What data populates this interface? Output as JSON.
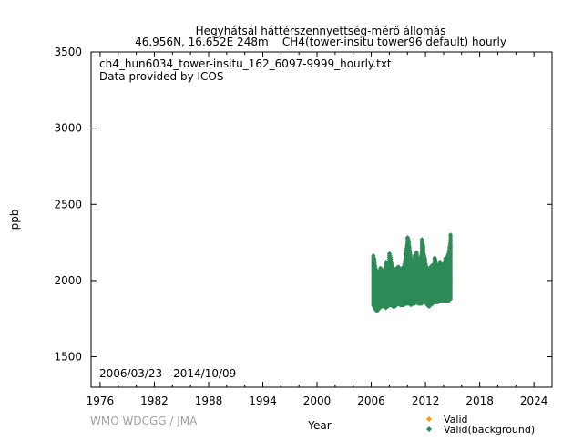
{
  "chart_data": {
    "type": "scatter",
    "title": "Hegyhátsál háttérszennyettség-mérő állomás",
    "subtitle": "46.956N, 16.652E 248m    CH4(tower-insitu tower96 default) hourly",
    "file_label": "ch4_hun6034_tower-insitu_162_6097-9999_hourly.txt",
    "provider_label": "Data provided by ICOS",
    "date_range_label": "2006/03/23 - 2014/10/09",
    "xlabel": "Year",
    "ylabel": "ppb",
    "xlim": [
      1975,
      2026
    ],
    "ylim": [
      1300,
      3500
    ],
    "xticks": [
      "1976",
      "1982",
      "1988",
      "1994",
      "2000",
      "2006",
      "2012",
      "2018",
      "2024"
    ],
    "yticks": [
      "1500",
      "2000",
      "2500",
      "3000",
      "3500"
    ],
    "grid": false,
    "legend_position": "bottom-right",
    "watermark": "WMO WDCGG / JMA",
    "series": [
      {
        "name": "Valid",
        "color": "#f5a000",
        "points": []
      },
      {
        "name": "Valid(background)",
        "color": "#2e8b57",
        "envelope_note_columns": [
          "year",
          "min_ppb",
          "max_ppb"
        ],
        "envelope": [
          [
            2006.22,
            1840,
            2170
          ],
          [
            2006.4,
            1820,
            2100
          ],
          [
            2006.6,
            1800,
            2040
          ],
          [
            2006.8,
            1810,
            2050
          ],
          [
            2007.0,
            1830,
            2090
          ],
          [
            2007.2,
            1830,
            2040
          ],
          [
            2007.4,
            1840,
            2060
          ],
          [
            2007.6,
            1820,
            2130
          ],
          [
            2007.8,
            1830,
            2080
          ],
          [
            2008.0,
            1840,
            2180
          ],
          [
            2008.2,
            1840,
            2120
          ],
          [
            2008.4,
            1830,
            2060
          ],
          [
            2008.6,
            1830,
            2070
          ],
          [
            2008.8,
            1840,
            2090
          ],
          [
            2009.0,
            1850,
            2090
          ],
          [
            2009.2,
            1840,
            2060
          ],
          [
            2009.4,
            1840,
            2080
          ],
          [
            2009.6,
            1840,
            2100
          ],
          [
            2009.8,
            1850,
            2180
          ],
          [
            2010.0,
            1850,
            2290
          ],
          [
            2010.2,
            1850,
            2230
          ],
          [
            2010.4,
            1840,
            2080
          ],
          [
            2010.6,
            1850,
            2120
          ],
          [
            2010.8,
            1850,
            2170
          ],
          [
            2011.0,
            1860,
            2190
          ],
          [
            2011.2,
            1850,
            2090
          ],
          [
            2011.4,
            1850,
            2100
          ],
          [
            2011.6,
            1850,
            2270
          ],
          [
            2011.8,
            1860,
            2180
          ],
          [
            2012.0,
            1860,
            2110
          ],
          [
            2012.2,
            1840,
            2080
          ],
          [
            2012.4,
            1830,
            2070
          ],
          [
            2012.6,
            1840,
            2100
          ],
          [
            2012.8,
            1850,
            2100
          ],
          [
            2013.0,
            1860,
            2150
          ],
          [
            2013.2,
            1860,
            2110
          ],
          [
            2013.4,
            1860,
            2100
          ],
          [
            2013.6,
            1870,
            2130
          ],
          [
            2013.8,
            1870,
            2080
          ],
          [
            2014.0,
            1870,
            2110
          ],
          [
            2014.2,
            1870,
            2150
          ],
          [
            2014.4,
            1870,
            2160
          ],
          [
            2014.6,
            1870,
            2200
          ],
          [
            2014.77,
            1880,
            2310
          ]
        ]
      }
    ]
  }
}
